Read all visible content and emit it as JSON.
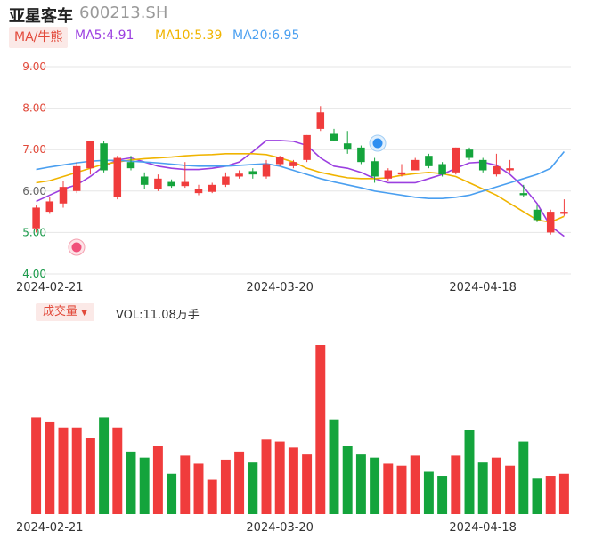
{
  "header": {
    "title": "亚星客车",
    "code": "600213.SH"
  },
  "ma": {
    "tag": "MA/牛熊",
    "ma5": {
      "label": "MA5:4.91",
      "color": "#9b3fe0"
    },
    "ma10": {
      "label": "MA10:5.39",
      "color": "#f0b400"
    },
    "ma20": {
      "label": "MA20:6.95",
      "color": "#4a9ff0"
    }
  },
  "volume": {
    "tag": "成交量",
    "label": "VOL:11.08万手"
  },
  "colors": {
    "up": "#f03c3c",
    "down": "#14a43c",
    "grid": "#e6e6e6",
    "axis": "#e24a3b"
  },
  "chart_data": {
    "type": "candlestick",
    "ylim": [
      4.0,
      9.0
    ],
    "yticks": [
      "9.00",
      "8.00",
      "7.00",
      "6.00",
      "5.00",
      "4.00"
    ],
    "xticks": [
      {
        "index": 1,
        "label": "2024-02-21"
      },
      {
        "index": 18,
        "label": "2024-03-20"
      },
      {
        "index": 33,
        "label": "2024-04-18"
      }
    ],
    "candles": [
      {
        "o": 5.1,
        "c": 5.6,
        "h": 5.65,
        "l": 5.0
      },
      {
        "o": 5.5,
        "c": 5.75,
        "h": 5.85,
        "l": 5.45
      },
      {
        "o": 5.7,
        "c": 6.1,
        "h": 6.25,
        "l": 5.6
      },
      {
        "o": 6.0,
        "c": 6.6,
        "h": 6.7,
        "l": 5.95
      },
      {
        "o": 6.55,
        "c": 7.2,
        "h": 7.2,
        "l": 6.4
      },
      {
        "o": 7.15,
        "c": 6.5,
        "h": 7.2,
        "l": 6.45
      },
      {
        "o": 5.85,
        "c": 6.8,
        "h": 6.85,
        "l": 5.8
      },
      {
        "o": 6.7,
        "c": 6.55,
        "h": 6.85,
        "l": 6.5
      },
      {
        "o": 6.35,
        "c": 6.15,
        "h": 6.45,
        "l": 6.05
      },
      {
        "o": 6.05,
        "c": 6.3,
        "h": 6.4,
        "l": 6.0
      },
      {
        "o": 6.22,
        "c": 6.12,
        "h": 6.28,
        "l": 6.08
      },
      {
        "o": 6.12,
        "c": 6.22,
        "h": 6.7,
        "l": 6.08
      },
      {
        "o": 5.95,
        "c": 6.05,
        "h": 6.15,
        "l": 5.9
      },
      {
        "o": 5.98,
        "c": 6.15,
        "h": 6.2,
        "l": 5.95
      },
      {
        "o": 6.15,
        "c": 6.35,
        "h": 6.45,
        "l": 6.1
      },
      {
        "o": 6.35,
        "c": 6.42,
        "h": 6.5,
        "l": 6.3
      },
      {
        "o": 6.48,
        "c": 6.4,
        "h": 6.55,
        "l": 6.3
      },
      {
        "o": 6.35,
        "c": 6.65,
        "h": 6.75,
        "l": 6.3
      },
      {
        "o": 6.65,
        "c": 6.82,
        "h": 6.85,
        "l": 6.6
      },
      {
        "o": 6.6,
        "c": 6.7,
        "h": 6.75,
        "l": 6.55
      },
      {
        "o": 6.75,
        "c": 7.35,
        "h": 7.35,
        "l": 6.7
      },
      {
        "o": 7.5,
        "c": 7.9,
        "h": 8.05,
        "l": 7.45
      },
      {
        "o": 7.38,
        "c": 7.22,
        "h": 7.5,
        "l": 7.2
      },
      {
        "o": 7.15,
        "c": 7.0,
        "h": 7.45,
        "l": 6.9
      },
      {
        "o": 7.05,
        "c": 6.7,
        "h": 7.1,
        "l": 6.65
      },
      {
        "o": 6.72,
        "c": 6.35,
        "h": 6.8,
        "l": 6.2
      },
      {
        "o": 6.3,
        "c": 6.5,
        "h": 6.55,
        "l": 6.25
      },
      {
        "o": 6.4,
        "c": 6.45,
        "h": 6.65,
        "l": 6.35
      },
      {
        "o": 6.5,
        "c": 6.75,
        "h": 6.8,
        "l": 6.5
      },
      {
        "o": 6.85,
        "c": 6.6,
        "h": 6.9,
        "l": 6.55
      },
      {
        "o": 6.65,
        "c": 6.4,
        "h": 6.7,
        "l": 6.35
      },
      {
        "o": 6.45,
        "c": 7.05,
        "h": 7.05,
        "l": 6.4
      },
      {
        "o": 7.0,
        "c": 6.8,
        "h": 7.05,
        "l": 6.75
      },
      {
        "o": 6.75,
        "c": 6.5,
        "h": 6.8,
        "l": 6.45
      },
      {
        "o": 6.4,
        "c": 6.6,
        "h": 6.9,
        "l": 6.35
      },
      {
        "o": 6.5,
        "c": 6.55,
        "h": 6.75,
        "l": 6.45
      },
      {
        "o": 5.95,
        "c": 5.9,
        "h": 6.15,
        "l": 5.85
      },
      {
        "o": 5.55,
        "c": 5.3,
        "h": 5.65,
        "l": 5.25
      },
      {
        "o": 5.0,
        "c": 5.5,
        "h": 5.55,
        "l": 4.95
      },
      {
        "o": 5.45,
        "c": 5.5,
        "h": 5.8,
        "l": 5.4
      }
    ],
    "volumes": [
      48,
      46,
      43,
      43,
      38,
      48,
      43,
      31,
      28,
      34,
      20,
      29,
      25,
      17,
      27,
      31,
      26,
      37,
      36,
      33,
      30,
      84,
      47,
      34,
      30,
      28,
      25,
      24,
      29,
      21,
      19,
      29,
      42,
      26,
      28,
      24,
      36,
      18,
      19,
      20
    ],
    "ma5": [
      5.75,
      5.9,
      6.05,
      6.15,
      6.35,
      6.6,
      6.75,
      6.8,
      6.7,
      6.6,
      6.55,
      6.52,
      6.52,
      6.55,
      6.6,
      6.7,
      6.95,
      7.22,
      7.22,
      7.2,
      7.1,
      6.8,
      6.6,
      6.55,
      6.45,
      6.3,
      6.2,
      6.2,
      6.2,
      6.3,
      6.4,
      6.55,
      6.68,
      6.7,
      6.62,
      6.4,
      6.1,
      5.7,
      5.15,
      4.91
    ],
    "ma10": [
      6.2,
      6.25,
      6.35,
      6.45,
      6.55,
      6.65,
      6.7,
      6.75,
      6.78,
      6.8,
      6.82,
      6.85,
      6.87,
      6.88,
      6.9,
      6.9,
      6.9,
      6.88,
      6.8,
      6.7,
      6.55,
      6.45,
      6.38,
      6.32,
      6.3,
      6.3,
      6.32,
      6.38,
      6.42,
      6.45,
      6.42,
      6.35,
      6.2,
      6.05,
      5.9,
      5.7,
      5.5,
      5.3,
      5.25,
      5.39
    ],
    "ma20": [
      6.52,
      6.58,
      6.63,
      6.68,
      6.72,
      6.74,
      6.74,
      6.72,
      6.7,
      6.68,
      6.65,
      6.62,
      6.6,
      6.6,
      6.6,
      6.62,
      6.64,
      6.66,
      6.6,
      6.5,
      6.4,
      6.3,
      6.22,
      6.15,
      6.08,
      6.0,
      5.95,
      5.9,
      5.85,
      5.82,
      5.82,
      5.85,
      5.9,
      6.0,
      6.1,
      6.2,
      6.3,
      6.4,
      6.55,
      6.95
    ]
  }
}
